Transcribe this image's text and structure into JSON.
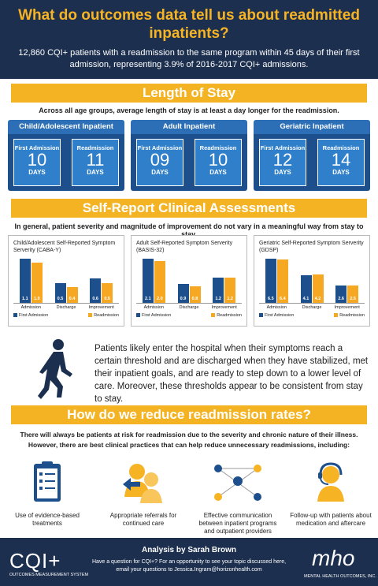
{
  "header": {
    "title": "What do outcomes data tell us about readmitted inpatients?",
    "subtitle": "12,860 CQI+ patients with a readmission to the same program within 45 days of their first admission, representing 3.9% of 2016-2017 CQI+ admissions."
  },
  "length_of_stay": {
    "heading": "Length of Stay",
    "caption": "Across all age groups, average length of stay is at least a day longer for the readmission.",
    "groups": [
      {
        "name": "Child/Adolescent Inpatient",
        "boxes": [
          {
            "label": "First Admission",
            "number": "10",
            "unit": "DAYS"
          },
          {
            "label": "Readmission",
            "number": "11",
            "unit": "DAYS"
          }
        ]
      },
      {
        "name": "Adult Inpatient",
        "boxes": [
          {
            "label": "First Admission",
            "number": "09",
            "unit": "DAYS"
          },
          {
            "label": "Readmission",
            "number": "10",
            "unit": "DAYS"
          }
        ]
      },
      {
        "name": "Geriatric Inpatient",
        "boxes": [
          {
            "label": "First Admission",
            "number": "12",
            "unit": "DAYS"
          },
          {
            "label": "Readmission",
            "number": "14",
            "unit": "DAYS"
          }
        ]
      }
    ]
  },
  "self_report": {
    "heading": "Self-Report Clinical Assessments",
    "caption": "In general, patient severity and magnitude of improvement do not vary in a meaningful way from stay to stay.",
    "note": "Patients likely enter the hospital when their symptoms reach a certain threshold and are discharged when they have stabilized, met their inpatient goals, and are ready to step down to a lower level of care. Moreover, these thresholds appear to be consistent from stay to stay."
  },
  "chart_data": [
    {
      "type": "bar",
      "title": "Child/Adolescent Self-Reported Symptom Serverity (CABA-Y)",
      "categories": [
        "Admission",
        "Discharge",
        "Improvement"
      ],
      "series": [
        {
          "name": "First Admission",
          "color": "#1d4f8c",
          "values": [
            1.1,
            0.5,
            0.6
          ],
          "value_labels": [
            "1.1",
            "0.5",
            "0.6"
          ]
        },
        {
          "name": "Readmission",
          "color": "#f6a823",
          "values": [
            1.0,
            0.4,
            0.5
          ],
          "value_labels": [
            "1.0",
            "0.4",
            "0.5"
          ]
        }
      ]
    },
    {
      "type": "bar",
      "title": "Adult Self-Reported Symptom Serverity (BASIS-32)",
      "categories": [
        "Admission",
        "Discharge",
        "Improvement"
      ],
      "series": [
        {
          "name": "First Admission",
          "color": "#1d4f8c",
          "values": [
            2.1,
            0.9,
            1.2
          ],
          "value_labels": [
            "2.1",
            "0.9",
            "1.2"
          ]
        },
        {
          "name": "Readmission",
          "color": "#f6a823",
          "values": [
            2.0,
            0.8,
            1.2
          ],
          "value_labels": [
            "2.0",
            "0.8",
            "1.2"
          ]
        }
      ]
    },
    {
      "type": "bar",
      "title": "Geriatric Self-Reported Symptom Serverity (GDSP)",
      "categories": [
        "Admission",
        "Discharge",
        "Improvement"
      ],
      "series": [
        {
          "name": "First Admission",
          "color": "#1d4f8c",
          "values": [
            6.5,
            4.1,
            2.6
          ],
          "value_labels": [
            "6.5",
            "4.1",
            "2.6"
          ]
        },
        {
          "name": "Readmission",
          "color": "#f6a823",
          "values": [
            6.4,
            4.2,
            2.5
          ],
          "value_labels": [
            "6.4",
            "4.2",
            "2.5"
          ]
        }
      ]
    }
  ],
  "reduce": {
    "heading": "How do we reduce readmission rates?",
    "intro": "There will always be patients at risk for readmission due to the severity and chronic nature of their illness. However, there are best clinical practices that can help reduce unnecessary readmissions, including:",
    "practices": [
      "Use of evidence-based treatments",
      "Appropriate referrals for continued care",
      "Effective communication between inpatient programs and outpatient providers",
      "Follow-up with patients about medication and aftercare"
    ]
  },
  "footer": {
    "analysis": "Analysis by Sarah Brown",
    "question": "Have a question for CQI+? For an opportunity to see your topic discussed here,",
    "email": "email your questions to Jessica.Ingram@horizonhealth.com",
    "logo_left": "CQI+",
    "logo_left_sub": "OUTCOMES MEASUREMENT SYSTEM",
    "logo_right": "mho",
    "logo_right_sub": "MENTAL HEALTH OUTCOMES, INC."
  }
}
